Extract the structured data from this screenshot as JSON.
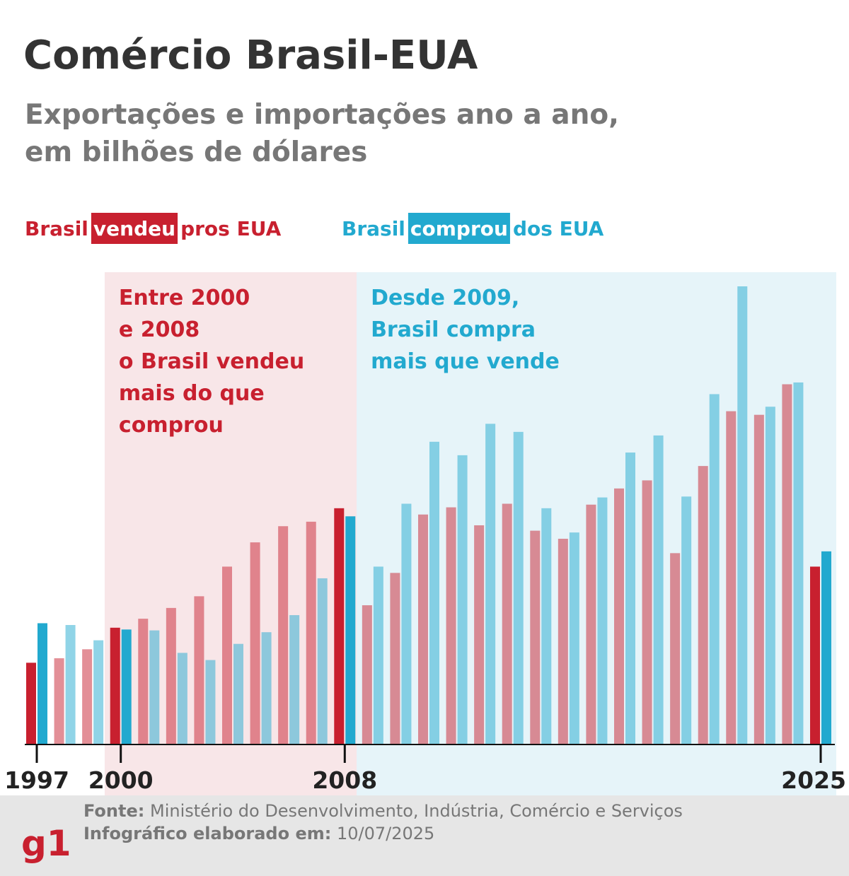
{
  "chart_data": {
    "type": "bar",
    "title": "Comércio Brasil-EUA",
    "subtitle": [
      "Exportações e importações ano a ano,",
      "em bilhões de dólares"
    ],
    "categories": [
      "1997",
      null,
      null,
      "2000",
      null,
      null,
      null,
      null,
      null,
      null,
      null,
      "2008",
      null,
      null,
      null,
      null,
      null,
      null,
      null,
      null,
      null,
      null,
      null,
      null,
      null,
      null,
      null,
      null,
      "2025"
    ],
    "series": [
      {
        "name": "vendeu",
        "legend_before": "Brasil",
        "legend_after": "pros EUA",
        "color": "#c8202f",
        "values": [
          9.1,
          9.6,
          10.6,
          13.0,
          14.0,
          15.2,
          16.5,
          19.8,
          22.5,
          24.3,
          24.8,
          26.3,
          15.5,
          19.1,
          25.6,
          26.4,
          24.4,
          26.8,
          23.8,
          22.9,
          26.7,
          28.5,
          29.4,
          21.3,
          31.0,
          37.1,
          36.7,
          40.1,
          19.8
        ]
      },
      {
        "name": "comprou",
        "legend_before": "Brasil",
        "legend_after": "dos EUA",
        "color": "#22a9cf",
        "values": [
          13.5,
          13.3,
          11.6,
          12.8,
          12.7,
          10.2,
          9.4,
          11.2,
          12.5,
          14.4,
          18.5,
          25.4,
          19.8,
          26.8,
          33.7,
          32.2,
          35.7,
          34.8,
          26.3,
          23.6,
          27.5,
          32.5,
          34.4,
          27.6,
          39.0,
          51.0,
          37.6,
          40.3,
          21.5
        ]
      }
    ],
    "ylim": [
      0,
      51
    ],
    "annotations": [
      {
        "color": "#c8202f",
        "background": "#f8e6e8",
        "from": 3,
        "to": 11,
        "lines": [
          "Entre 2000",
          "e 2008",
          "o Brasil vendeu",
          "mais do que",
          "comprou"
        ]
      },
      {
        "color": "#22a9cf",
        "background": "#e6f4f9",
        "from": 12,
        "to": 28,
        "lines": [
          "Desde 2009,",
          "Brasil compra",
          "mais que vende"
        ]
      }
    ],
    "source_label": "Fonte:",
    "source": "Ministério do Desenvolvimento, Indústria, Comércio e Serviços",
    "date_label": "Infográfico elaborado em:",
    "date": "10/07/2025",
    "logo": "g1"
  }
}
